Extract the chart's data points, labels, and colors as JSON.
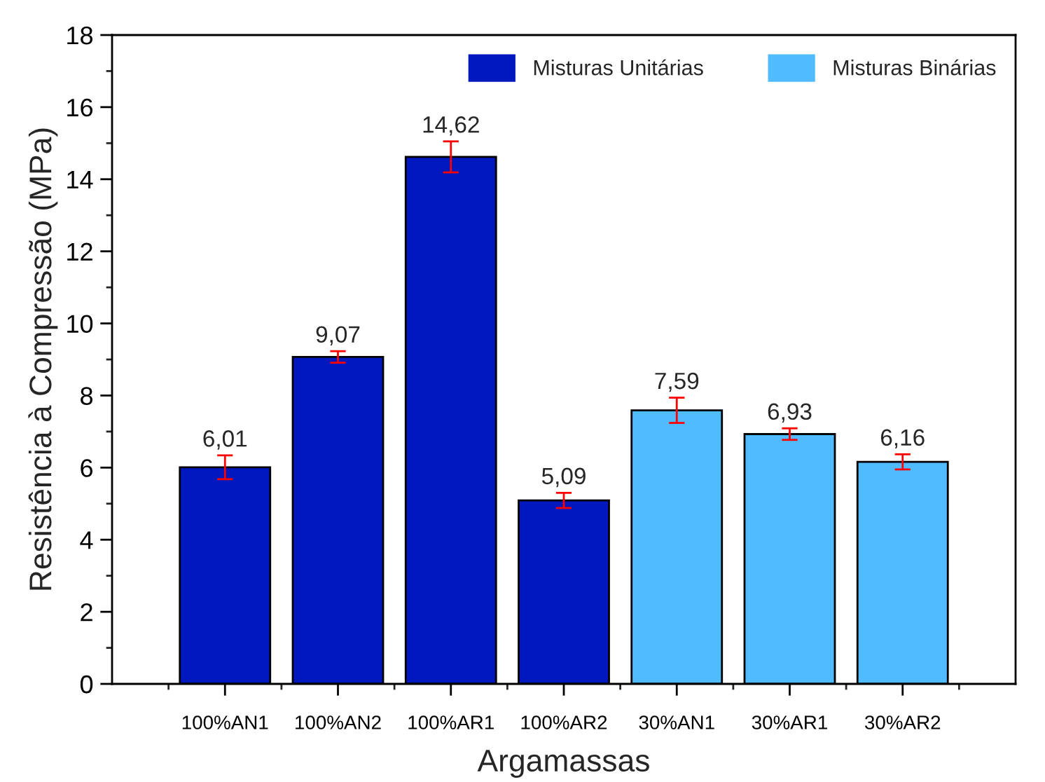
{
  "chart_data": {
    "type": "bar",
    "xlabel": "Argamassas",
    "ylabel": "Resistência à Compressão (MPa)",
    "categories": [
      "100%AN1",
      "100%AN2",
      "100%AR1",
      "100%AR2",
      "30%AN1",
      "30%AR1",
      "30%AR2"
    ],
    "series": [
      {
        "name": "Misturas Unitárias",
        "color": "#0018bd",
        "values": [
          6.01,
          9.07,
          14.62,
          5.09,
          null,
          null,
          null
        ],
        "errors": [
          0.33,
          0.16,
          0.43,
          0.21,
          null,
          null,
          null
        ],
        "value_labels": [
          "6,01",
          "9,07",
          "14,62",
          "5,09",
          null,
          null,
          null
        ]
      },
      {
        "name": "Misturas Binárias",
        "color": "#50bcff",
        "values": [
          null,
          null,
          null,
          null,
          7.59,
          6.93,
          6.16
        ],
        "errors": [
          null,
          null,
          null,
          null,
          0.35,
          0.16,
          0.21
        ],
        "value_labels": [
          null,
          null,
          null,
          null,
          "7,59",
          "6,93",
          "6,16"
        ]
      }
    ],
    "ylim": [
      0,
      18
    ],
    "yticks": [
      0,
      2,
      4,
      6,
      8,
      10,
      12,
      14,
      16,
      18
    ],
    "grid": false,
    "legend": "top right"
  }
}
